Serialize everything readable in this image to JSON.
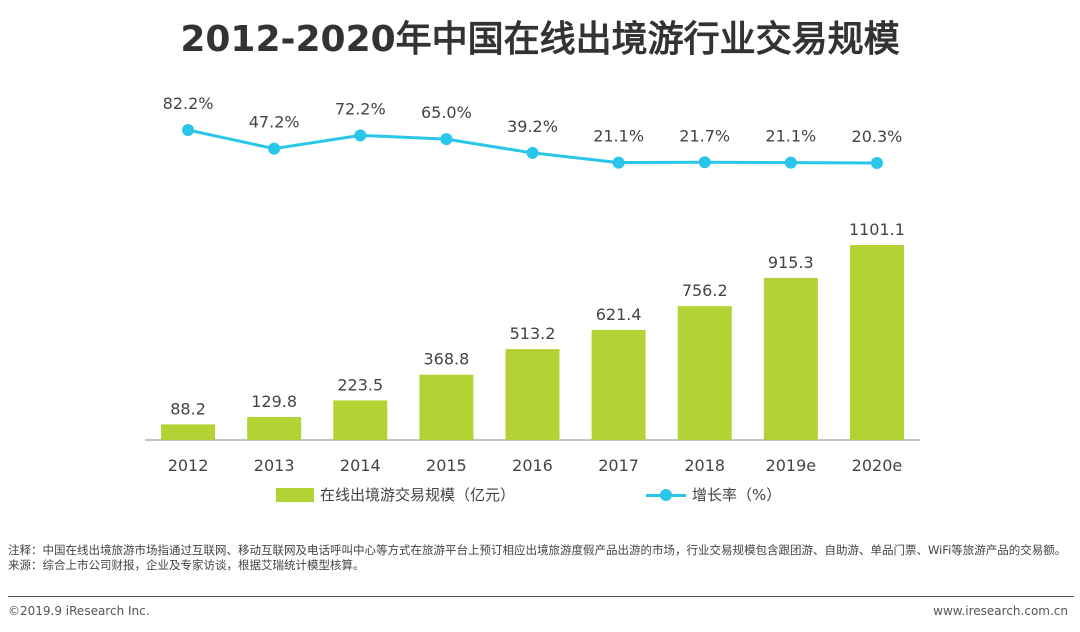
{
  "title": "2012-2020年中国在线出境游行业交易规模",
  "chart_data": {
    "type": "bar",
    "categories": [
      "2012",
      "2013",
      "2014",
      "2015",
      "2016",
      "2017",
      "2018",
      "2019e",
      "2020e"
    ],
    "series": [
      {
        "name": "在线出境游交易规模（亿元）",
        "type": "bar",
        "color": "#b3d334",
        "values": [
          88.2,
          129.8,
          223.5,
          368.8,
          513.2,
          621.4,
          756.2,
          915.3,
          1101.1
        ],
        "labels": [
          "88.2",
          "129.8",
          "223.5",
          "368.8",
          "513.2",
          "621.4",
          "756.2",
          "915.3",
          "1101.1"
        ]
      },
      {
        "name": "增长率（%）",
        "type": "line",
        "color": "#2ac6ea",
        "values": [
          82.2,
          47.2,
          72.2,
          65.0,
          39.2,
          21.1,
          21.7,
          21.1,
          20.3
        ],
        "labels": [
          "82.2%",
          "47.2%",
          "72.2%",
          "65.0%",
          "39.2%",
          "21.1%",
          "21.7%",
          "21.1%",
          "20.3%"
        ]
      }
    ],
    "legend": "bottom"
  },
  "notes": {
    "note": "注释：中国在线出境旅游市场指通过互联网、移动互联网及电话呼叫中心等方式在旅游平台上预订相应出境旅游度假产品出游的市场，行业交易规模包含跟团游、自助游、单品门票、WiFi等旅游产品的交易额。",
    "source": "来源：综合上市公司财报，企业及专家访谈，根据艾瑞统计模型核算。"
  },
  "footer": {
    "copyright": "©2019.9 iResearch Inc.",
    "website": "www.iresearch.com.cn"
  }
}
